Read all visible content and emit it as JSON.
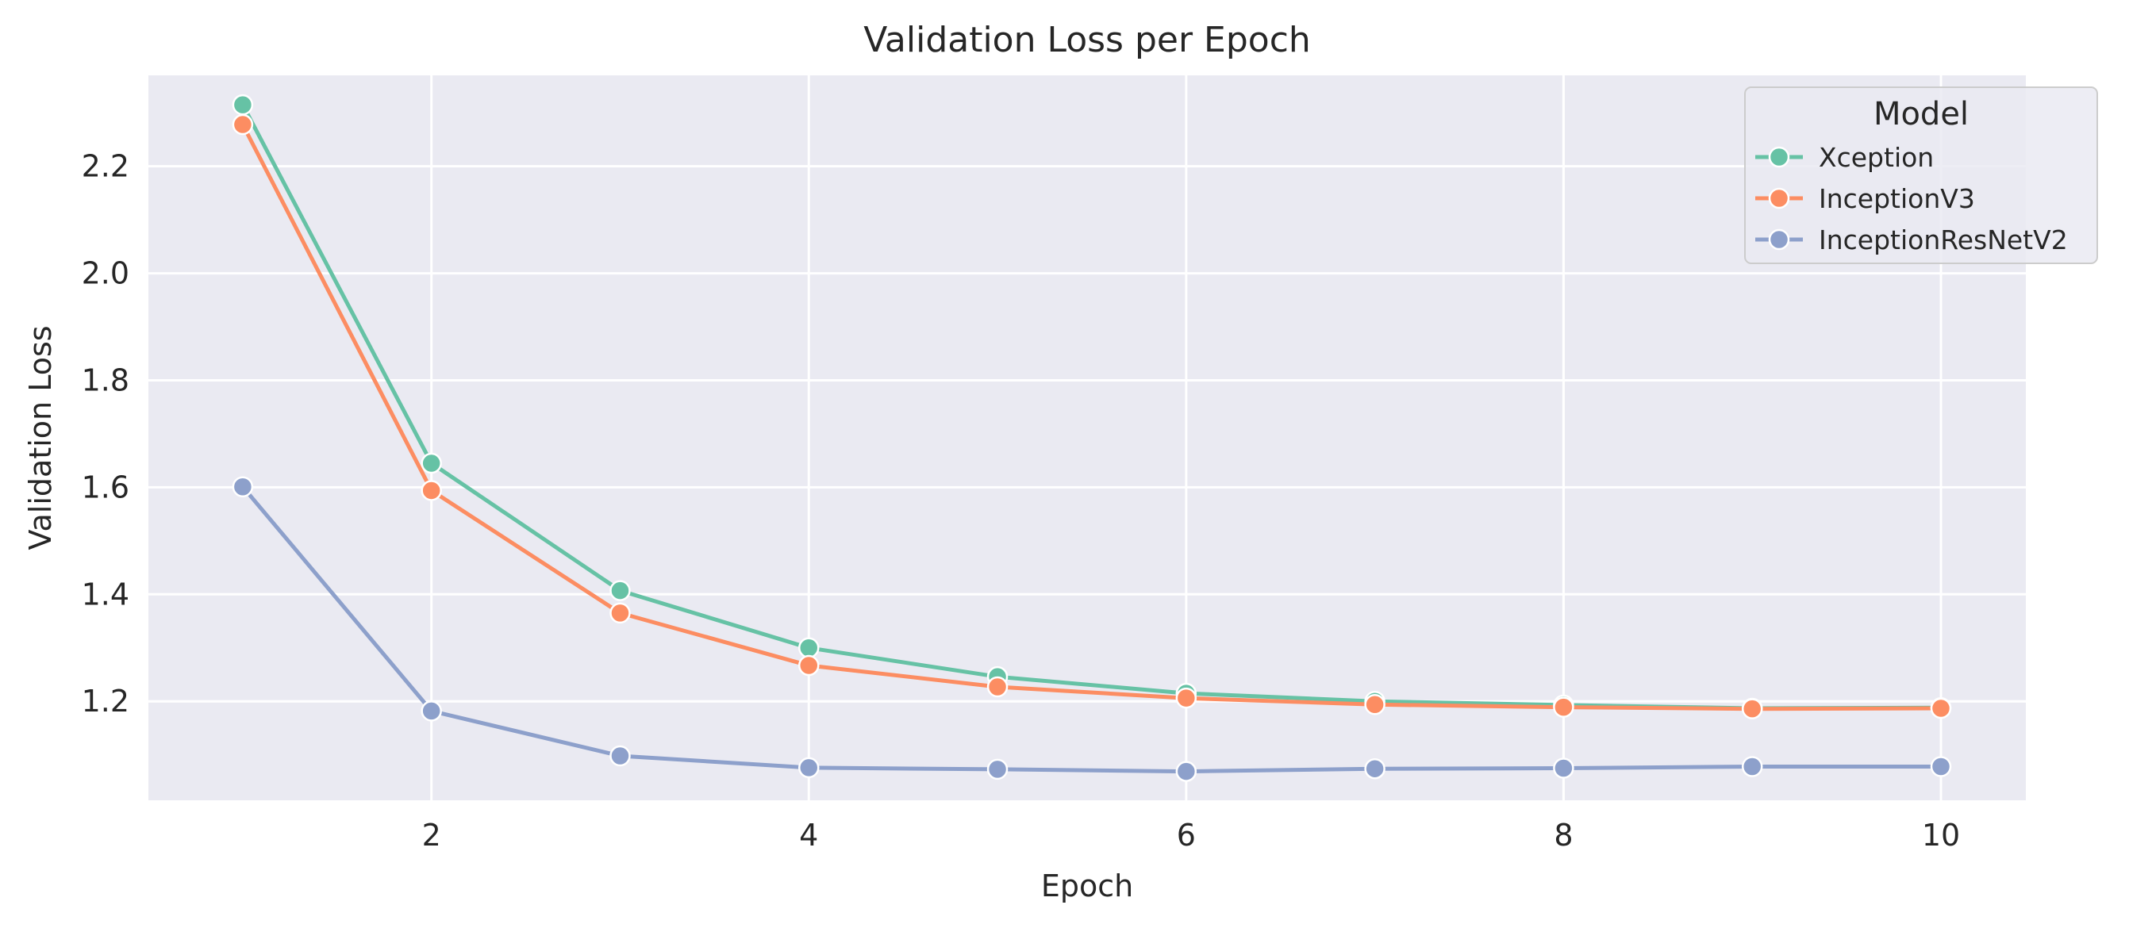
{
  "chart_data": {
    "type": "line",
    "title": "Validation Loss per Epoch",
    "xlabel": "Epoch",
    "ylabel": "Validation Loss",
    "xlim": [
      0.5,
      10.45
    ],
    "ylim": [
      1.015,
      2.37
    ],
    "xticks": [
      2,
      4,
      6,
      8,
      10
    ],
    "yticks": [
      1.2,
      1.4,
      1.6,
      1.8,
      2.0,
      2.2
    ],
    "grid": true,
    "legend": {
      "title": "Model",
      "placement": "top-right"
    },
    "x": [
      1,
      2,
      3,
      4,
      5,
      6,
      7,
      8,
      9,
      10
    ],
    "series": [
      {
        "name": "Xception",
        "color": "#66c2a5",
        "values": [
          2.315,
          1.645,
          1.407,
          1.3,
          1.246,
          1.215,
          1.2,
          1.193,
          1.187,
          1.188
        ]
      },
      {
        "name": "InceptionV3",
        "color": "#fc8d62",
        "values": [
          2.278,
          1.594,
          1.365,
          1.267,
          1.227,
          1.206,
          1.194,
          1.189,
          1.186,
          1.187
        ]
      },
      {
        "name": "InceptionResNetV2",
        "color": "#8da0cb",
        "values": [
          1.601,
          1.182,
          1.098,
          1.076,
          1.073,
          1.069,
          1.074,
          1.075,
          1.078,
          1.078
        ]
      }
    ]
  }
}
